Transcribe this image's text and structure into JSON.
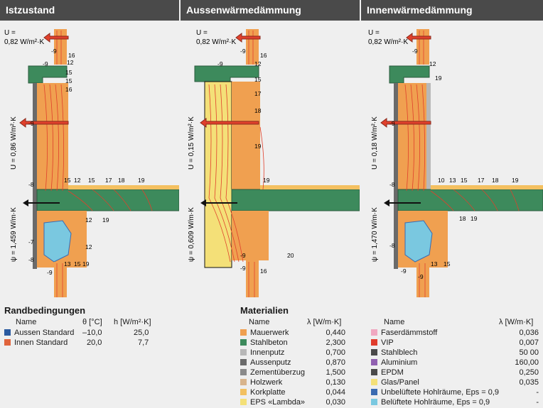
{
  "panels": [
    {
      "id": "istzustand",
      "title": "Istzustand",
      "u_label": "U =",
      "u_value": "0,82 W/m²·K",
      "u_wall": "U = 0,86 W/m²·K",
      "psi": "ψ = 1,459 W/m·K",
      "labels_top": [
        "-9",
        "16",
        "-9",
        "12",
        "15",
        "15",
        "16"
      ],
      "labels_slab": [
        "15",
        "12",
        "15",
        "17",
        "18",
        "19"
      ],
      "labels_side": [
        "-9",
        "-8",
        "-7",
        "-8",
        "-9",
        "12",
        "19",
        "12",
        "13",
        "15",
        "19"
      ]
    },
    {
      "id": "aussen",
      "title": "Aussenwärmedämmung",
      "u_label": "U =",
      "u_value": "0,82 W/m²·K",
      "u_wall": "U = 0,15 W/m²·K",
      "psi": "ψ = 0,609 W/m·K",
      "labels_top": [
        "-9",
        "-9",
        "16",
        "12",
        "15",
        "17",
        "18",
        "19"
      ],
      "labels_slab": [
        "19"
      ],
      "labels_side": [
        "-9",
        "20",
        "-9",
        "16"
      ]
    },
    {
      "id": "innen",
      "title": "Innenwärmedämmung",
      "u_label": "U =",
      "u_value": "0,82 W/m²·K",
      "u_wall": "U = 0,18 W/m²·K",
      "psi": "ψ = 1,470 W/m·K",
      "labels_top": [
        "-9",
        "12",
        "19"
      ],
      "labels_slab": [
        "10",
        "13",
        "15",
        "17",
        "18",
        "19"
      ],
      "labels_side": [
        "-9",
        "-8",
        "-8",
        "18",
        "19",
        "13",
        "15",
        "-9",
        "-9"
      ]
    }
  ],
  "randbedingungen": {
    "title": "Randbedingungen",
    "headers": {
      "name": "Name",
      "theta": "θ [°C]",
      "h": "h [W/m²·K]"
    },
    "rows": [
      {
        "name": "Aussen Standard",
        "theta": "–10,0",
        "h": "25,0",
        "color": "#2a5aa0"
      },
      {
        "name": "Innen Standard",
        "theta": "20,0",
        "h": "7,7",
        "color": "#e0643c"
      }
    ]
  },
  "materialien": {
    "title": "Materialien",
    "headers": {
      "name": "Name",
      "lambda": "λ [W/m·K]"
    },
    "left": [
      {
        "name": "Mauerwerk",
        "value": "0,440",
        "color": "#f0a050"
      },
      {
        "name": "Stahlbeton",
        "value": "2,300",
        "color": "#3d8a5c"
      },
      {
        "name": "Innenputz",
        "value": "0,700",
        "color": "#b8b8b8"
      },
      {
        "name": "Aussenputz",
        "value": "0,870",
        "color": "#6a6a6a"
      },
      {
        "name": "Zementüberzug",
        "value": "1,500",
        "color": "#8a8a8a"
      },
      {
        "name": "Holzwerk",
        "value": "0,130",
        "color": "#d8b48c"
      },
      {
        "name": "Korkplatte",
        "value": "0,044",
        "color": "#f2c060"
      },
      {
        "name": "EPS «Lambda»",
        "value": "0,030",
        "color": "#f4e078"
      }
    ],
    "right": [
      {
        "name": "Faserdämmstoff",
        "value": "0,036",
        "color": "#f0a8c0"
      },
      {
        "name": "VIP",
        "value": "0,007",
        "color": "#e03c2c"
      },
      {
        "name": "Stahlblech",
        "value": "50 00",
        "color": "#4a4a4a"
      },
      {
        "name": "Aluminium",
        "value": "160,00",
        "color": "#9060b0"
      },
      {
        "name": "EPDM",
        "value": "0,250",
        "color": "#4a4a4a"
      },
      {
        "name": "Glas/Panel",
        "value": "0,035",
        "color": "#f4e078"
      },
      {
        "name": "Unbelüftete Hohlräume, Eps = 0,9",
        "value": "-",
        "color": "#3a6ab0"
      },
      {
        "name": "Belüftete Hohlräume, Eps = 0,9",
        "value": "-",
        "color": "#7ac8e0"
      }
    ]
  }
}
